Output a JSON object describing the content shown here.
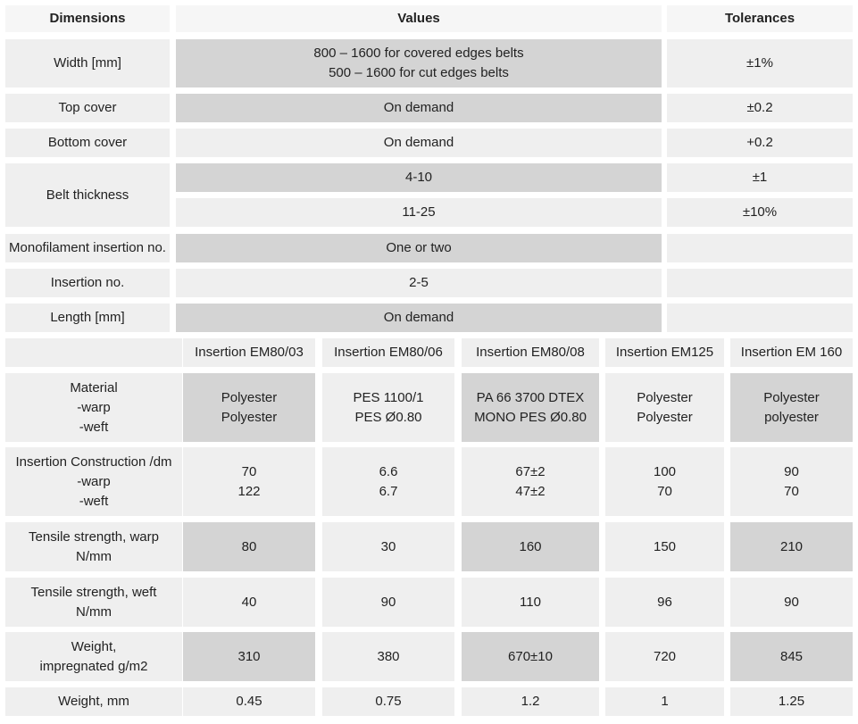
{
  "headers": {
    "dimensions": "Dimensions",
    "values": "Values",
    "tolerances": "Tolerances"
  },
  "rows": {
    "width": {
      "label": "Width [mm]",
      "value": "800 – 1600 for covered edges belts\n500 – 1600 for cut edges belts",
      "tolerance": "±1%"
    },
    "top_cover": {
      "label": "Top cover",
      "value": "On demand",
      "tolerance": "±0.2"
    },
    "bottom_cover": {
      "label": "Bottom cover",
      "value": "On demand",
      "tolerance": "+0.2"
    },
    "belt_thickness": {
      "label": "Belt thickness",
      "value_1": "4-10",
      "tolerance_1": "±1",
      "value_2": "11-25",
      "tolerance_2": "±10%"
    },
    "mono_insertion": {
      "label": "Monofilament insertion no.",
      "value": "One or two",
      "tolerance": ""
    },
    "insertion_no": {
      "label": "Insertion no.",
      "value": "2-5",
      "tolerance": ""
    },
    "length": {
      "label": "Length [mm]",
      "value": "On demand",
      "tolerance": ""
    }
  },
  "insertions": {
    "columns": [
      "Insertion EM80/03",
      "Insertion EM80/06",
      "Insertion EM80/08",
      "Insertion EM125",
      "Insertion EM 160"
    ],
    "rows": [
      {
        "label": "Material\n-warp\n-weft",
        "values": [
          "Polyester\nPolyester",
          "PES 1100/1\nPES Ø0.80",
          "PA 66 3700 DTEX\nMONO PES Ø0.80",
          "Polyester\nPolyester",
          "Polyester\npolyester"
        ]
      },
      {
        "label": "Insertion Construction /dm\n-warp\n-weft",
        "values": [
          "70\n122",
          "6.6\n6.7",
          "67±2\n47±2",
          "100\n70",
          "90\n70"
        ]
      },
      {
        "label": "Tensile strength, warp\nN/mm",
        "values": [
          "80",
          "30",
          "160",
          "150",
          "210"
        ]
      },
      {
        "label": "Tensile strength, weft\nN/mm",
        "values": [
          "40",
          "90",
          "110",
          "96",
          "90"
        ]
      },
      {
        "label": "Weight,\nimpregnated g/m2",
        "values": [
          "310",
          "380",
          "670±10",
          "720",
          "845"
        ]
      },
      {
        "label": "Weight, mm",
        "values": [
          "0.45",
          "0.75",
          "1.2",
          "1",
          "1.25"
        ]
      }
    ]
  }
}
